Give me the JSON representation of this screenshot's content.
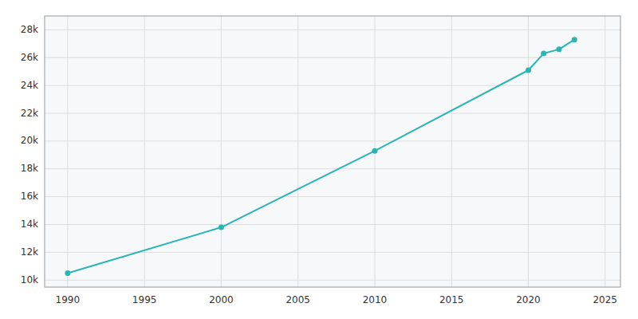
{
  "chart_data": {
    "type": "line",
    "x": [
      1990,
      2000,
      2010,
      2020,
      2021,
      2022,
      2023
    ],
    "values": [
      10500,
      13800,
      19300,
      25100,
      26300,
      26600,
      27300
    ],
    "color": "#2ab5b5",
    "marker": "circle",
    "xlim": [
      1988.5,
      2026
    ],
    "ylim": [
      9500,
      29000
    ],
    "xticks": [
      1990,
      1995,
      2000,
      2005,
      2010,
      2015,
      2020,
      2025
    ],
    "yticks": [
      {
        "value": 10000,
        "label": "10k"
      },
      {
        "value": 12000,
        "label": "12k"
      },
      {
        "value": 14000,
        "label": "14k"
      },
      {
        "value": 16000,
        "label": "16k"
      },
      {
        "value": 18000,
        "label": "18k"
      },
      {
        "value": 20000,
        "label": "20k"
      },
      {
        "value": 22000,
        "label": "22k"
      },
      {
        "value": 24000,
        "label": "24k"
      },
      {
        "value": 26000,
        "label": "26k"
      },
      {
        "value": 28000,
        "label": "28k"
      }
    ],
    "grid": true
  }
}
